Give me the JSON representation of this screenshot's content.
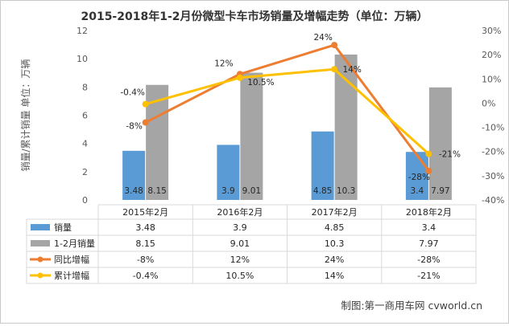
{
  "chart_data": {
    "type": "bar",
    "title": "2015-2018年1-2月份微型卡车市场销量及增幅走势（单位：万辆）",
    "ylabel": "销量/累计销量 单位：万辆",
    "y2label": "",
    "categories": [
      "2015年2月",
      "2016年2月",
      "2017年2月",
      "2018年2月"
    ],
    "ylim": [
      0,
      12
    ],
    "yticks": [
      0,
      2,
      4,
      6,
      8,
      10,
      12
    ],
    "y2lim": [
      -40,
      30
    ],
    "y2ticks": [
      "-40%",
      "-30%",
      "-20%",
      "-10%",
      "0%",
      "10%",
      "20%",
      "30%"
    ],
    "grid": false,
    "legend": "data-table",
    "bar_series": [
      {
        "name": "销量",
        "values": [
          3.48,
          3.9,
          4.85,
          3.4
        ],
        "labels": [
          "3.48",
          "3.9",
          "4.85",
          "3.4"
        ],
        "color": "#5b9bd5"
      },
      {
        "name": "1-2月销量",
        "values": [
          8.15,
          9.01,
          10.3,
          7.97
        ],
        "labels": [
          "8.15",
          "9.01",
          "10.3",
          "7.97"
        ],
        "color": "#a5a5a5"
      }
    ],
    "line_series": [
      {
        "name": "同比增幅",
        "values": [
          -8,
          12,
          24,
          -28
        ],
        "labels": [
          "-8%",
          "12%",
          "24%",
          "-28%"
        ],
        "color": "#ed7d31"
      },
      {
        "name": "累计增幅",
        "values": [
          -0.4,
          10.5,
          14,
          -21
        ],
        "labels": [
          "-0.4%",
          "10.5%",
          "14%",
          "-21%"
        ],
        "color": "#ffc000"
      }
    ],
    "table": {
      "rows": [
        {
          "name": "销量",
          "values": [
            "3.48",
            "3.9",
            "4.85",
            "3.4"
          ]
        },
        {
          "name": "1-2月销量",
          "values": [
            "8.15",
            "9.01",
            "10.3",
            "7.97"
          ]
        },
        {
          "name": "同比增幅",
          "values": [
            "-8%",
            "12%",
            "24%",
            "-28%"
          ]
        },
        {
          "name": "累计增幅",
          "values": [
            "-0.4%",
            "10.5%",
            "14%",
            "-21%"
          ]
        }
      ]
    },
    "source": "制图:第一商用车网 cvworld.cn"
  }
}
